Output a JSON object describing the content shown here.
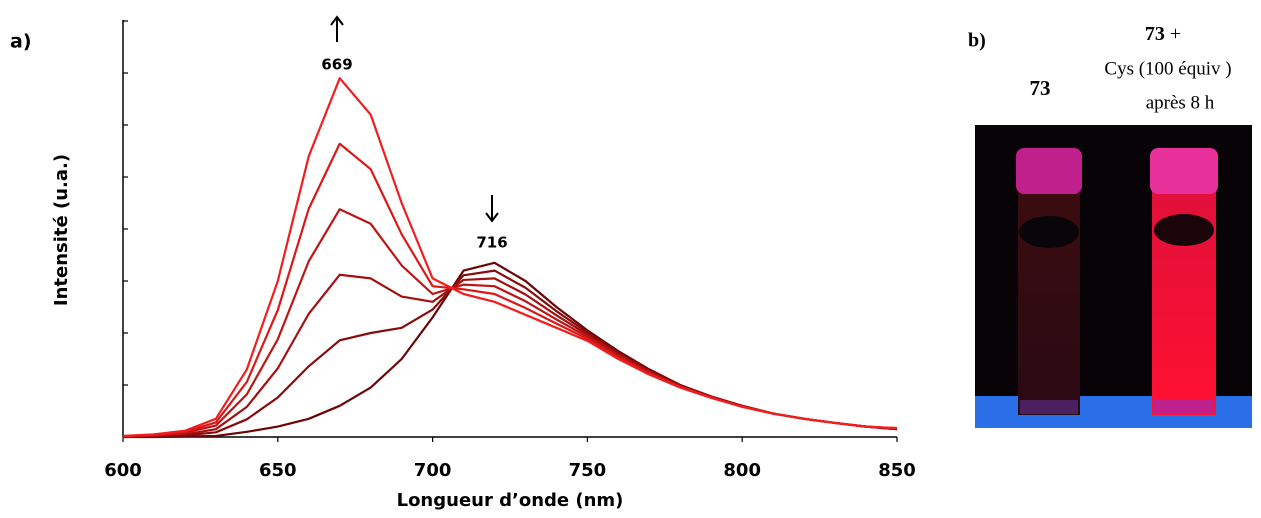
{
  "panel_labels": [
    "a)",
    "b)"
  ],
  "chart_data": {
    "type": "line",
    "x_label": "Longueur d’onde  (nm)",
    "y_label": "Intensité (u.a.)",
    "annotations": [
      "669",
      "716"
    ],
    "x": [
      600,
      610,
      620,
      630,
      640,
      650,
      660,
      670,
      680,
      690,
      700,
      710,
      720,
      730,
      740,
      750,
      760,
      770,
      780,
      790,
      800,
      810,
      820,
      830,
      840,
      850
    ],
    "xlim": [
      600,
      850
    ],
    "xticks": [
      600,
      650,
      700,
      750,
      800,
      850
    ],
    "ylim": [
      0,
      8
    ],
    "yticks": [
      0,
      1,
      2,
      3,
      4,
      5,
      6,
      7,
      8
    ],
    "series": [
      {
        "color": "#6b0505",
        "values": [
          0,
          0,
          0.01,
          0.02,
          0.1,
          0.2,
          0.35,
          0.6,
          0.95,
          1.5,
          2.3,
          3.2,
          3.35,
          3.0,
          2.5,
          2.05,
          1.65,
          1.3,
          1.0,
          0.78,
          0.6,
          0.45,
          0.35,
          0.27,
          0.2,
          0.15
        ]
      },
      {
        "color": "#880b0b",
        "values": [
          0,
          0.01,
          0.03,
          0.09,
          0.34,
          0.76,
          1.36,
          1.86,
          2.0,
          2.1,
          2.45,
          3.11,
          3.2,
          2.87,
          2.42,
          2.01,
          1.62,
          1.28,
          0.99,
          0.77,
          0.6,
          0.45,
          0.35,
          0.27,
          0.2,
          0.15
        ]
      },
      {
        "color": "#a31010",
        "values": [
          0.01,
          0.02,
          0.05,
          0.15,
          0.58,
          1.32,
          2.37,
          3.12,
          3.05,
          2.7,
          2.6,
          3.02,
          3.05,
          2.74,
          2.34,
          1.97,
          1.59,
          1.26,
          0.98,
          0.77,
          0.59,
          0.45,
          0.35,
          0.27,
          0.2,
          0.16
        ]
      },
      {
        "color": "#bd1414",
        "values": [
          0.01,
          0.03,
          0.08,
          0.22,
          0.82,
          1.88,
          3.38,
          4.38,
          4.1,
          3.3,
          2.75,
          2.93,
          2.9,
          2.61,
          2.26,
          1.93,
          1.56,
          1.24,
          0.97,
          0.76,
          0.59,
          0.45,
          0.35,
          0.27,
          0.2,
          0.16
        ]
      },
      {
        "color": "#d91818",
        "values": [
          0.02,
          0.04,
          0.1,
          0.28,
          1.06,
          2.44,
          4.39,
          5.64,
          5.15,
          3.9,
          2.9,
          2.84,
          2.75,
          2.48,
          2.18,
          1.89,
          1.53,
          1.22,
          0.96,
          0.76,
          0.58,
          0.45,
          0.35,
          0.27,
          0.2,
          0.17
        ]
      },
      {
        "color": "#f01e1e",
        "values": [
          0.02,
          0.05,
          0.12,
          0.35,
          1.3,
          3.0,
          5.4,
          6.9,
          6.2,
          4.5,
          3.05,
          2.75,
          2.6,
          2.35,
          2.1,
          1.85,
          1.5,
          1.2,
          0.95,
          0.75,
          0.58,
          0.45,
          0.35,
          0.27,
          0.2,
          0.17
        ]
      }
    ]
  },
  "photo": {
    "sample1": "73",
    "sample2_compound": "73",
    "sample2_plus": "+",
    "sample2_line2": "Cys (100 équiv )",
    "sample2_line3": "après 8 h"
  }
}
